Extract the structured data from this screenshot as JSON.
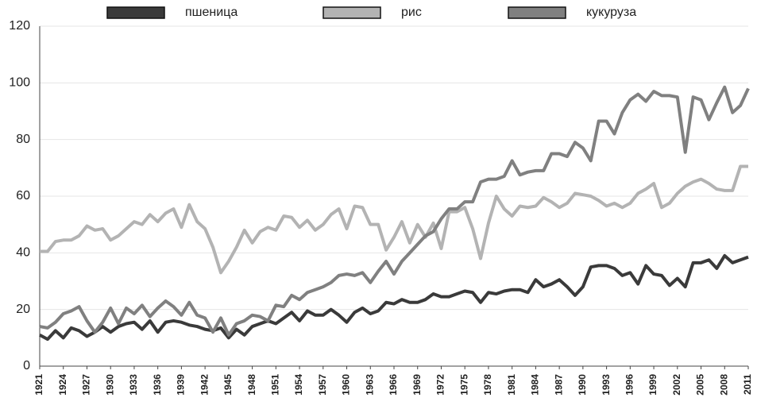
{
  "chart_data": {
    "type": "line",
    "x": [
      1921,
      1922,
      1923,
      1924,
      1925,
      1926,
      1927,
      1928,
      1929,
      1930,
      1931,
      1932,
      1933,
      1934,
      1935,
      1936,
      1937,
      1938,
      1939,
      1940,
      1941,
      1942,
      1943,
      1944,
      1945,
      1946,
      1947,
      1948,
      1949,
      1950,
      1951,
      1952,
      1953,
      1954,
      1955,
      1956,
      1957,
      1958,
      1959,
      1960,
      1961,
      1962,
      1963,
      1964,
      1965,
      1966,
      1967,
      1968,
      1969,
      1970,
      1971,
      1972,
      1973,
      1974,
      1975,
      1976,
      1977,
      1978,
      1979,
      1980,
      1981,
      1982,
      1983,
      1984,
      1985,
      1986,
      1987,
      1988,
      1989,
      1990,
      1991,
      1992,
      1993,
      1994,
      1995,
      1996,
      1997,
      1998,
      1999,
      2000,
      2001,
      2002,
      2003,
      2004,
      2005,
      2006,
      2007,
      2008,
      2009,
      2010,
      2011
    ],
    "xlim": [
      1921,
      2011
    ],
    "xticks": [
      1921,
      1924,
      1927,
      1930,
      1933,
      1936,
      1939,
      1942,
      1945,
      1948,
      1951,
      1954,
      1957,
      1960,
      1963,
      1966,
      1969,
      1972,
      1975,
      1978,
      1981,
      1984,
      1987,
      1990,
      1993,
      1996,
      1999,
      2002,
      2005,
      2008,
      2011
    ],
    "ylim": [
      0,
      120
    ],
    "yticks": [
      0,
      20,
      40,
      60,
      80,
      100,
      120
    ],
    "grid": true,
    "series": [
      {
        "name": "пшеница",
        "color": "#3a3a3a",
        "values": [
          11,
          9.5,
          12.5,
          10,
          13.5,
          12.5,
          10.5,
          12,
          14,
          12,
          14,
          15,
          15.5,
          13,
          16,
          12,
          15.5,
          16,
          15.5,
          14.5,
          14,
          13,
          12.5,
          13.5,
          10,
          13,
          11,
          14,
          15,
          16,
          15,
          17,
          19,
          16,
          19.5,
          18,
          18,
          20,
          18,
          15.5,
          19,
          20.5,
          18.5,
          19.5,
          22.5,
          22,
          23.5,
          22.5,
          22.5,
          23.5,
          25.5,
          24.5,
          24.5,
          25.5,
          26.5,
          26,
          22.5,
          26,
          25.5,
          26.5,
          27,
          27,
          26,
          30.5,
          28,
          29,
          30.5,
          28,
          25,
          28,
          35,
          35.5,
          35.5,
          34.5,
          32,
          33,
          29,
          35.5,
          32.5,
          32,
          28.5,
          31,
          28,
          36.5,
          36.5,
          37.5,
          34.5,
          39,
          36.5,
          37.5,
          38.5
        ]
      },
      {
        "name": "рис",
        "color": "#b3b3b3",
        "values": [
          40.5,
          40.5,
          44,
          44.5,
          44.5,
          46,
          49.5,
          48,
          48.5,
          44.5,
          46,
          48.5,
          51,
          50,
          53.5,
          51,
          54,
          55.5,
          49,
          57,
          51,
          48.5,
          42,
          33,
          37,
          42,
          48,
          43.5,
          47.5,
          49,
          48,
          53,
          52.5,
          49,
          51.5,
          48,
          50,
          53.5,
          55.5,
          48.5,
          56.5,
          56,
          50,
          50,
          41,
          45.5,
          51,
          43.5,
          50,
          45.5,
          50.5,
          41.5,
          54.5,
          54.5,
          56,
          48.5,
          38,
          50.5,
          60,
          55.5,
          53,
          56.5,
          56,
          56.5,
          59.5,
          58,
          56,
          57.5,
          61,
          60.5,
          60,
          58.5,
          56.5,
          57.5,
          56,
          57.5,
          61,
          62.5,
          64.5,
          56,
          57.5,
          61,
          63.5,
          65,
          66,
          64.5,
          62.5,
          62,
          62,
          70.5,
          70.5
        ]
      },
      {
        "name": "кукуруза",
        "color": "#808080",
        "values": [
          14,
          13.5,
          15.5,
          18.5,
          19.5,
          21,
          16,
          12,
          15.5,
          20.5,
          15,
          20.5,
          18.5,
          21.5,
          17.5,
          20.5,
          23,
          21,
          18,
          22.5,
          18,
          17,
          12,
          17,
          11,
          15,
          16,
          18,
          17.5,
          16,
          21.5,
          21,
          25,
          23.5,
          26,
          27,
          28,
          29.5,
          32,
          32.5,
          32,
          33,
          29.5,
          33.5,
          37,
          32.5,
          37,
          40,
          43,
          46,
          47.5,
          52,
          55.5,
          55.5,
          58,
          58,
          65,
          66,
          66,
          67,
          72.5,
          67.5,
          68.5,
          69,
          69,
          75,
          75,
          74,
          79,
          77,
          72.5,
          86.5,
          86.5,
          82,
          89.5,
          94,
          96,
          93.5,
          97,
          95.5,
          95.5,
          95,
          75.5,
          95,
          94,
          87,
          93,
          98.5,
          89.5,
          92,
          98
        ]
      }
    ]
  }
}
